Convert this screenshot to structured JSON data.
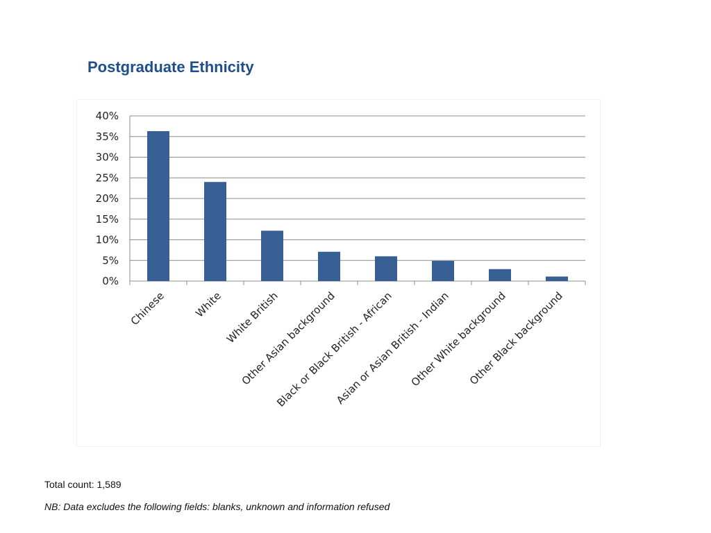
{
  "colors": {
    "title": "#1f4e8c",
    "bar": "#375f93",
    "grid": "#8c8c8c",
    "axis": "#8c8c8c"
  },
  "chart_data": {
    "type": "bar",
    "title": "Postgraduate Ethnicity",
    "categories": [
      "Chinese",
      "White",
      "White British",
      "Other Asian background",
      "Black or Black British - African",
      "Asian or Asian British - Indian",
      "Other White background",
      "Other Black background"
    ],
    "values": [
      36.3,
      24.0,
      12.2,
      7.1,
      6.0,
      4.9,
      2.9,
      1.1
    ],
    "ylim": [
      0,
      40
    ],
    "yticks": [
      0,
      5,
      10,
      15,
      20,
      25,
      30,
      35,
      40
    ],
    "ytick_labels": [
      "0%",
      "5%",
      "10%",
      "15%",
      "20%",
      "25%",
      "30%",
      "35%",
      "40%"
    ],
    "grid": true,
    "xlabel": "",
    "ylabel": ""
  },
  "footer": {
    "total": "Total count: 1,589",
    "note": "NB: Data excludes the following fields: blanks, unknown and information refused"
  }
}
